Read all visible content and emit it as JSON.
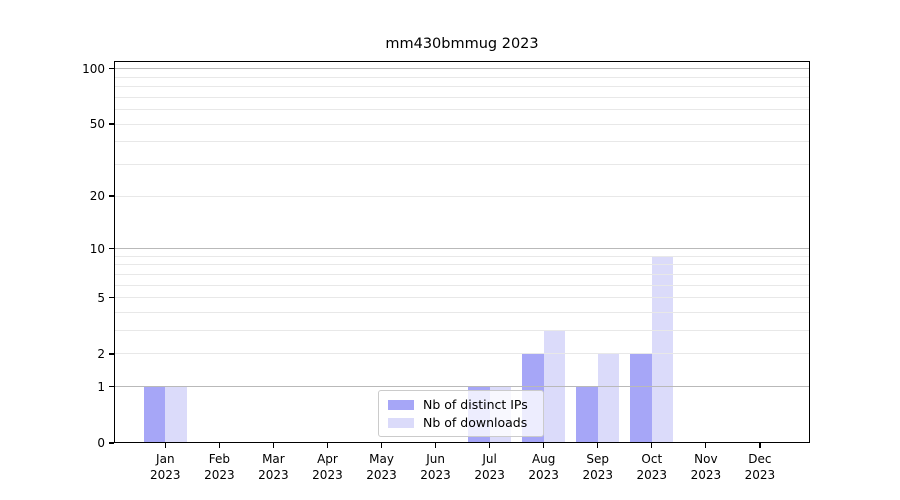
{
  "title": "mm430bmmug 2023",
  "chart_data": {
    "type": "bar",
    "title": "mm430bmmug 2023",
    "categories": [
      "Jan 2023",
      "Feb 2023",
      "Mar 2023",
      "Apr 2023",
      "May 2023",
      "Jun 2023",
      "Jul 2023",
      "Aug 2023",
      "Sep 2023",
      "Oct 2023",
      "Nov 2023",
      "Dec 2023"
    ],
    "x_tick_month_labels": [
      "Jan",
      "Feb",
      "Mar",
      "Apr",
      "May",
      "Jun",
      "Jul",
      "Aug",
      "Sep",
      "Oct",
      "Nov",
      "Dec"
    ],
    "x_tick_year_label": "2023",
    "series": [
      {
        "name": "Nb of distinct IPs",
        "color": "#a6a6f7",
        "values": [
          1,
          0,
          0,
          0,
          0,
          0,
          1,
          2,
          1,
          2,
          0,
          0
        ]
      },
      {
        "name": "Nb of downloads",
        "color": "#dbdbfa",
        "values": [
          1,
          0,
          0,
          0,
          0,
          0,
          1,
          3,
          2,
          9,
          0,
          0
        ]
      }
    ],
    "yscale": "log10(1+x)",
    "ylim": [
      0,
      110
    ],
    "y_tick_values": [
      0,
      1,
      2,
      5,
      10,
      20,
      50,
      100
    ],
    "y_major_gridlines": [
      1,
      10,
      100
    ],
    "y_minor_gridlines": [
      2,
      3,
      4,
      5,
      6,
      7,
      8,
      9,
      20,
      30,
      40,
      50,
      60,
      70,
      80,
      90
    ],
    "grid": true,
    "legend_location": "inside-bottom-center",
    "colors": {
      "major_grid": "#b9b9b9",
      "minor_grid": "#e8e8e8",
      "spine": "#000000",
      "background": "#ffffff"
    }
  }
}
